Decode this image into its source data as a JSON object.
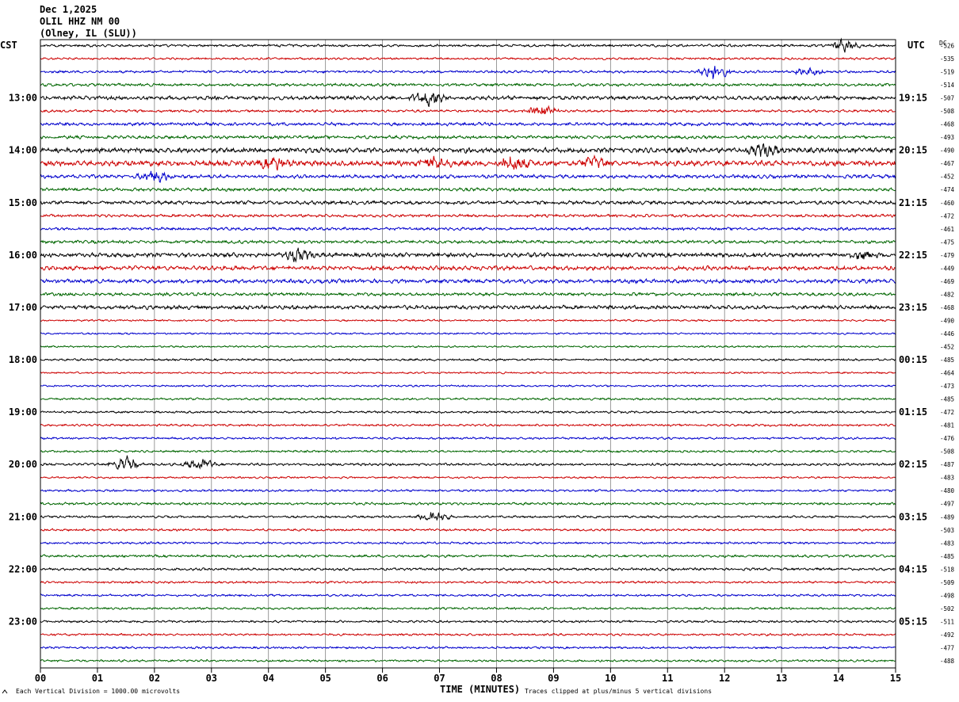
{
  "header": {
    "date": "Dec 1,2025",
    "station": "OLIL HHZ NM 00",
    "location": "(Olney, IL (SLU))"
  },
  "labels": {
    "left_tz": "CST",
    "right_tz": "UTC",
    "dc": "DC",
    "x_title": "TIME (MINUTES)",
    "scale_note": "Each Vertical Division = 1000.00 microvolts",
    "clip_note": "Traces clipped at plus/minus 5 vertical divisions"
  },
  "chart_data": {
    "type": "line",
    "title": "OLIL HHZ NM 00",
    "xlabel": "TIME (MINUTES)",
    "xlim": [
      0,
      15
    ],
    "x_ticks": [
      "00",
      "01",
      "02",
      "03",
      "04",
      "05",
      "06",
      "07",
      "08",
      "09",
      "10",
      "11",
      "12",
      "13",
      "14",
      "15"
    ],
    "row_count": 48,
    "minutes_per_row": 15,
    "trace_colors": [
      "#000000",
      "#cc0000",
      "#0000cc",
      "#006600"
    ],
    "left_hour_labels": [
      "13:00",
      "14:00",
      "15:00",
      "16:00",
      "17:00",
      "18:00",
      "19:00",
      "20:00",
      "21:00",
      "22:00",
      "23:00"
    ],
    "right_hour_labels": [
      "19:15",
      "20:15",
      "21:15",
      "22:15",
      "23:15",
      "00:15",
      "01:15",
      "02:15",
      "03:15",
      "04:15",
      "05:15"
    ],
    "hour_label_first_row": 4,
    "dc_offsets": [
      -526,
      -535,
      -519,
      -514,
      -507,
      -508,
      -468,
      -493,
      -490,
      -467,
      -452,
      -474,
      -460,
      -472,
      -461,
      -475,
      -479,
      -449,
      -469,
      -482,
      -468,
      -490,
      -446,
      -452,
      -485,
      -464,
      -473,
      -485,
      -472,
      -481,
      -476,
      -508,
      -487,
      -483,
      -480,
      -497,
      -489,
      -503,
      -483,
      -485,
      -518,
      -509,
      -498,
      -502,
      -511,
      -492,
      -477,
      -488
    ],
    "row_activity": [
      0.35,
      0.3,
      0.35,
      0.4,
      0.55,
      0.35,
      0.45,
      0.45,
      0.7,
      0.75,
      0.5,
      0.45,
      0.5,
      0.4,
      0.4,
      0.45,
      0.6,
      0.6,
      0.55,
      0.45,
      0.55,
      0.25,
      0.25,
      0.25,
      0.3,
      0.25,
      0.25,
      0.3,
      0.3,
      0.3,
      0.3,
      0.3,
      0.35,
      0.25,
      0.3,
      0.35,
      0.3,
      0.3,
      0.3,
      0.35,
      0.35,
      0.3,
      0.3,
      0.3,
      0.3,
      0.3,
      0.3,
      0.3
    ],
    "events": [
      {
        "row": 0,
        "minute": 14.1,
        "amplitude": 3
      },
      {
        "row": 2,
        "minute": 11.8,
        "amplitude": 4
      },
      {
        "row": 2,
        "minute": 13.5,
        "amplitude": 2
      },
      {
        "row": 4,
        "minute": 6.8,
        "amplitude": 4
      },
      {
        "row": 5,
        "minute": 8.8,
        "amplitude": 3
      },
      {
        "row": 8,
        "minute": 12.7,
        "amplitude": 3
      },
      {
        "row": 9,
        "minute": 4.1,
        "amplitude": 3
      },
      {
        "row": 9,
        "minute": 6.9,
        "amplitude": 3
      },
      {
        "row": 9,
        "minute": 8.3,
        "amplitude": 4
      },
      {
        "row": 9,
        "minute": 9.7,
        "amplitude": 3
      },
      {
        "row": 10,
        "minute": 2.0,
        "amplitude": 3
      },
      {
        "row": 16,
        "minute": 4.5,
        "amplitude": 3
      },
      {
        "row": 16,
        "minute": 14.4,
        "amplitude": 2
      },
      {
        "row": 32,
        "minute": 1.5,
        "amplitude": 4
      },
      {
        "row": 32,
        "minute": 2.8,
        "amplitude": 3
      },
      {
        "row": 36,
        "minute": 6.9,
        "amplitude": 3
      }
    ]
  }
}
